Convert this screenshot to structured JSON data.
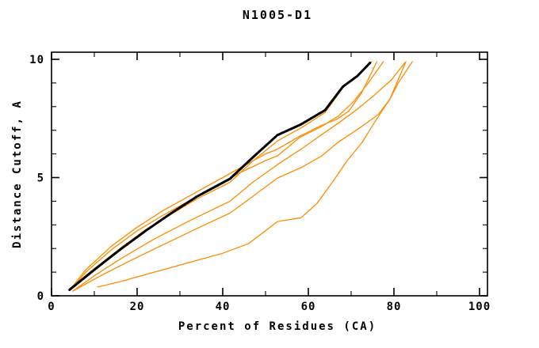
{
  "header": {
    "title": "N1005-D1"
  },
  "chart_data": {
    "type": "line",
    "title": "N1005-D1",
    "xlabel": "Percent of Residues (CA)",
    "ylabel": "Distance Cutoff, A",
    "xlim": [
      0,
      101.8
    ],
    "ylim": [
      0,
      10.3
    ],
    "x_major_ticks": [
      0,
      20,
      40,
      60,
      80,
      100
    ],
    "x_minor_step": 10,
    "y_major_ticks": [
      0,
      5,
      10
    ],
    "y_minor_step": 1,
    "grid": false,
    "legend": "none",
    "colors": {
      "background": "#ffffff",
      "axis": "#000000",
      "reference_curve": "#000000",
      "model_curves": "#ff8c00"
    },
    "series": [
      {
        "name": "reference-curve-black",
        "color": "#000000",
        "width": 3,
        "x": [
          4.2,
          10,
          16,
          22,
          28,
          34,
          41.7,
          47,
          52.8,
          58.3,
          63.9,
          68.1,
          71.5,
          74.4
        ],
        "y": [
          0.25,
          1.1,
          1.95,
          2.75,
          3.5,
          4.2,
          4.95,
          5.85,
          6.8,
          7.25,
          7.85,
          8.85,
          9.3,
          9.85
        ]
      },
      {
        "name": "model-curve-1",
        "color": "#ff8c00",
        "width": 1.3,
        "x": [
          4.2,
          10,
          16,
          22,
          28,
          34,
          41.7,
          47,
          52.8,
          58.3,
          63.9,
          68.1,
          71.5,
          74.8
        ],
        "y": [
          0.3,
          1.15,
          2.0,
          2.8,
          3.45,
          4.1,
          4.8,
          5.7,
          6.55,
          7.1,
          7.75,
          8.8,
          9.3,
          9.9
        ]
      },
      {
        "name": "model-curve-2",
        "color": "#ff8c00",
        "width": 1.3,
        "x": [
          4.5,
          8,
          14,
          20,
          26,
          32,
          38,
          44,
          50,
          52.8,
          58,
          63,
          66.5,
          69.4,
          72.5,
          76
        ],
        "y": [
          0.3,
          1.1,
          2.1,
          2.9,
          3.6,
          4.2,
          4.8,
          5.4,
          6.0,
          6.2,
          6.75,
          7.2,
          7.45,
          7.8,
          8.6,
          9.9
        ]
      },
      {
        "name": "model-curve-3",
        "color": "#ff8c00",
        "width": 1.3,
        "x": [
          4.5,
          8,
          14,
          20,
          26,
          32,
          38,
          44,
          50,
          52.8,
          58,
          63,
          67,
          70.5,
          74,
          77.5
        ],
        "y": [
          0.25,
          1.0,
          1.95,
          2.75,
          3.4,
          4.0,
          4.6,
          5.2,
          5.72,
          5.92,
          6.7,
          7.15,
          7.6,
          8.2,
          9.0,
          9.9
        ]
      },
      {
        "name": "model-curve-4",
        "color": "#ff8c00",
        "width": 1.3,
        "x": [
          5,
          10,
          16,
          24,
          32,
          41.7,
          47,
          52.8,
          58.3,
          63,
          67,
          71.5,
          75.5,
          79.5,
          82.6
        ],
        "y": [
          0.2,
          0.85,
          1.55,
          2.4,
          3.15,
          4.0,
          4.8,
          5.55,
          6.2,
          6.8,
          7.3,
          7.9,
          8.5,
          9.15,
          9.87
        ]
      },
      {
        "name": "model-curve-5",
        "color": "#ff8c00",
        "width": 1.3,
        "x": [
          5,
          11,
          18,
          26,
          34,
          41.7,
          47,
          52.8,
          58.3,
          63,
          67,
          72,
          76.3,
          79,
          82.8
        ],
        "y": [
          0.2,
          0.8,
          1.45,
          2.15,
          2.85,
          3.5,
          4.2,
          4.98,
          5.42,
          5.9,
          6.5,
          7.1,
          7.66,
          8.3,
          9.9
        ]
      },
      {
        "name": "model-curve-6-low",
        "color": "#ff8c00",
        "width": 1.3,
        "x": [
          10.8,
          16,
          22,
          28,
          34,
          40,
          46,
          52.8,
          58.3,
          62,
          66,
          69,
          72.6,
          75,
          77.5,
          79,
          81,
          84.3
        ],
        "y": [
          0.37,
          0.6,
          0.9,
          1.2,
          1.5,
          1.8,
          2.2,
          3.14,
          3.3,
          3.9,
          4.9,
          5.7,
          6.49,
          7.2,
          7.9,
          8.3,
          9.0,
          9.9
        ]
      }
    ]
  }
}
